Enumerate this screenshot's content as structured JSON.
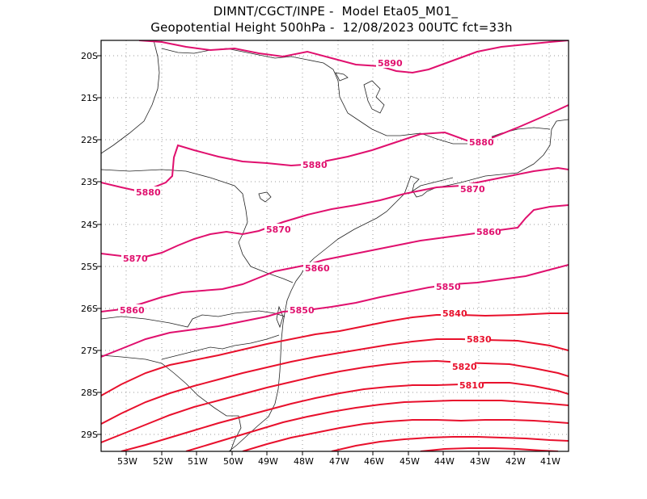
{
  "header": {
    "line1": "DIMNT/CGCT/INPE -  Model Eta05_M01_",
    "line2": "Geopotential Height 500hPa -  12/08/2023 00UTC fct=33h"
  },
  "map": {
    "lat_ticks": [
      "20S",
      "21S",
      "22S",
      "23S",
      "24S",
      "25S",
      "26S",
      "27S",
      "28S",
      "29S"
    ],
    "lon_ticks": [
      "53W",
      "52W",
      "51W",
      "50W",
      "49W",
      "48W",
      "47W",
      "46W",
      "45W",
      "44W",
      "43W",
      "42W",
      "41W"
    ],
    "contour_color_high": "#e0106e",
    "contour_color_low": "#e8102c",
    "contour_labels": [
      {
        "text": "5890"
      },
      {
        "text": "5880"
      },
      {
        "text": "5880"
      },
      {
        "text": "5880"
      },
      {
        "text": "5870"
      },
      {
        "text": "5870"
      },
      {
        "text": "5870"
      },
      {
        "text": "5860"
      },
      {
        "text": "5860"
      },
      {
        "text": "5860"
      },
      {
        "text": "5850"
      },
      {
        "text": "5850"
      },
      {
        "text": "5840"
      },
      {
        "text": "5830"
      },
      {
        "text": "5820"
      },
      {
        "text": "5810"
      }
    ]
  }
}
